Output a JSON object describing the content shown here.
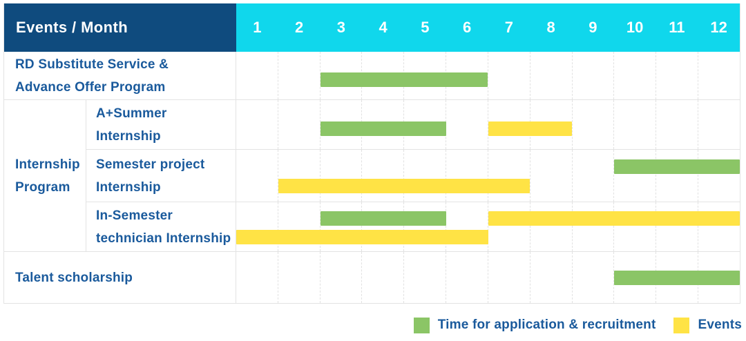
{
  "table": {
    "corner_label": "Events / Month"
  },
  "colors": {
    "header_bg": "#0F4B7E",
    "months_bg": "#10D7EC",
    "label_text": "#1A5A9C",
    "recruitment_green": "#8BC566",
    "events_yellow": "#FFE345",
    "grid_line": "#e1e1e1"
  },
  "legend": {
    "items": [
      {
        "key": "recruitment",
        "color": "#8BC566",
        "label": "Time for application & recruitment"
      },
      {
        "key": "events",
        "color": "#FFE345",
        "label": "Events"
      }
    ]
  },
  "chart_data": {
    "type": "bar",
    "variant": "gantt",
    "title": "Events / Month",
    "months": [
      "1",
      "2",
      "3",
      "4",
      "5",
      "6",
      "7",
      "8",
      "9",
      "10",
      "11",
      "12"
    ],
    "x_range": [
      1,
      12
    ],
    "grid": true,
    "legend_position": "bottom-right",
    "series_legend": {
      "recruitment": "Time for application & recruitment",
      "events": "Events"
    },
    "group": {
      "label_lines": [
        "Internship",
        "Program"
      ],
      "member_row_ids": [
        "a-summer",
        "semester-project",
        "in-semester"
      ]
    },
    "rows": [
      {
        "id": "rd-substitute",
        "label_lines": [
          "RD Substitute Service &",
          "Advance Offer Program"
        ],
        "bars": [
          {
            "series": "recruitment",
            "start_month": 3,
            "end_month": 6,
            "track": "middle"
          }
        ]
      },
      {
        "id": "a-summer",
        "label_lines": [
          "A+Summer",
          "Internship"
        ],
        "bars": [
          {
            "series": "recruitment",
            "start_month": 3,
            "end_month": 5,
            "track": "middle"
          },
          {
            "series": "events",
            "start_month": 7,
            "end_month": 8,
            "track": "middle"
          }
        ]
      },
      {
        "id": "semester-project",
        "label_lines": [
          "Semester project",
          "Internship"
        ],
        "bars": [
          {
            "series": "recruitment",
            "start_month": 10,
            "end_month": 12,
            "track": "upper"
          },
          {
            "series": "events",
            "start_month": 2,
            "end_month": 7,
            "track": "lower"
          }
        ]
      },
      {
        "id": "in-semester",
        "label_lines": [
          "In-Semester",
          "technician Internship"
        ],
        "bars": [
          {
            "series": "recruitment",
            "start_month": 3,
            "end_month": 5,
            "track": "upper"
          },
          {
            "series": "events",
            "start_month": 7,
            "end_month": 12,
            "track": "upper"
          },
          {
            "series": "events",
            "start_month": 1,
            "end_month": 6,
            "track": "lower"
          }
        ]
      },
      {
        "id": "talent-scholarship",
        "label_lines": [
          "Talent scholarship"
        ],
        "bars": [
          {
            "series": "recruitment",
            "start_month": 10,
            "end_month": 12,
            "track": "middle-high"
          }
        ]
      }
    ]
  }
}
